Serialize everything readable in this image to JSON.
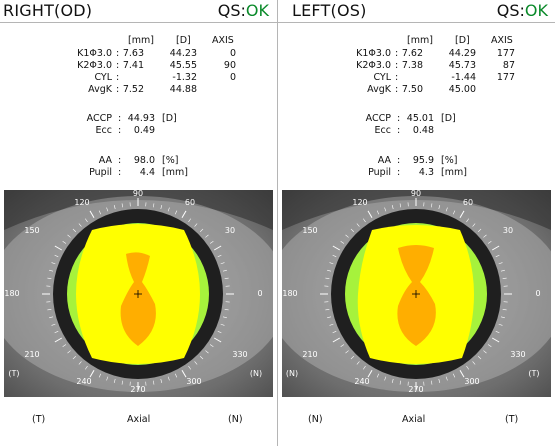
{
  "right": {
    "title": "RIGHT(OD)",
    "qs_label": "QS:",
    "qs_value": "OK",
    "col_headers": {
      "mm": "[mm]",
      "d": "[D]",
      "axis": "AXIS"
    },
    "rows": [
      {
        "label": "K1Φ3.0",
        "mm": "7.63",
        "d": "44.23",
        "axis": "0"
      },
      {
        "label": "K2Φ3.0",
        "mm": "7.41",
        "d": "45.55",
        "axis": "90"
      },
      {
        "label": "CYL",
        "mm": "",
        "d": "-1.32",
        "axis": "0"
      },
      {
        "label": "AvgK",
        "mm": "7.52",
        "d": "44.88",
        "axis": ""
      }
    ],
    "accp": {
      "label": "ACCP",
      "value": "44.93",
      "unit": "[D]"
    },
    "ecc": {
      "label": "Ecc",
      "value": "0.49"
    },
    "aa": {
      "label": "AA",
      "value": "98.0",
      "unit": "[%]"
    },
    "pupil": {
      "label": "Pupil",
      "value": "4.4",
      "unit": "[mm]"
    },
    "map": {
      "ticks": [
        "90",
        "60",
        "30",
        "0",
        "330",
        "300",
        "270",
        "240",
        "210",
        "180",
        "150",
        "120"
      ],
      "nasal_mark": "(N)",
      "temporal_mark": "(T)",
      "colors": {
        "main": "#ffff00",
        "flat": "#a6f23c",
        "steep": "#ffae00"
      }
    },
    "footer": {
      "left": "(T)",
      "center": "Axial",
      "right": "(N)"
    }
  },
  "left": {
    "title": "LEFT(OS)",
    "qs_label": "QS:",
    "qs_value": "OK",
    "col_headers": {
      "mm": "[mm]",
      "d": "[D]",
      "axis": "AXIS"
    },
    "rows": [
      {
        "label": "K1Φ3.0",
        "mm": "7.62",
        "d": "44.29",
        "axis": "177"
      },
      {
        "label": "K2Φ3.0",
        "mm": "7.38",
        "d": "45.73",
        "axis": "87"
      },
      {
        "label": "CYL",
        "mm": "",
        "d": "-1.44",
        "axis": "177"
      },
      {
        "label": "AvgK",
        "mm": "7.50",
        "d": "45.00",
        "axis": ""
      }
    ],
    "accp": {
      "label": "ACCP",
      "value": "45.01",
      "unit": "[D]"
    },
    "ecc": {
      "label": "Ecc",
      "value": "0.48"
    },
    "aa": {
      "label": "AA",
      "value": "95.9",
      "unit": "[%]"
    },
    "pupil": {
      "label": "Pupil",
      "value": "4.3",
      "unit": "[mm]"
    },
    "map": {
      "ticks": [
        "90",
        "60",
        "30",
        "0",
        "330",
        "300",
        "270",
        "240",
        "210",
        "180",
        "150",
        "120"
      ],
      "nasal_mark": "(N)",
      "temporal_mark": "(T)",
      "colors": {
        "main": "#ffff00",
        "flat": "#a6f23c",
        "steep": "#ffae00"
      }
    },
    "footer": {
      "left": "(N)",
      "center": "Axial",
      "right": "(T)"
    }
  }
}
